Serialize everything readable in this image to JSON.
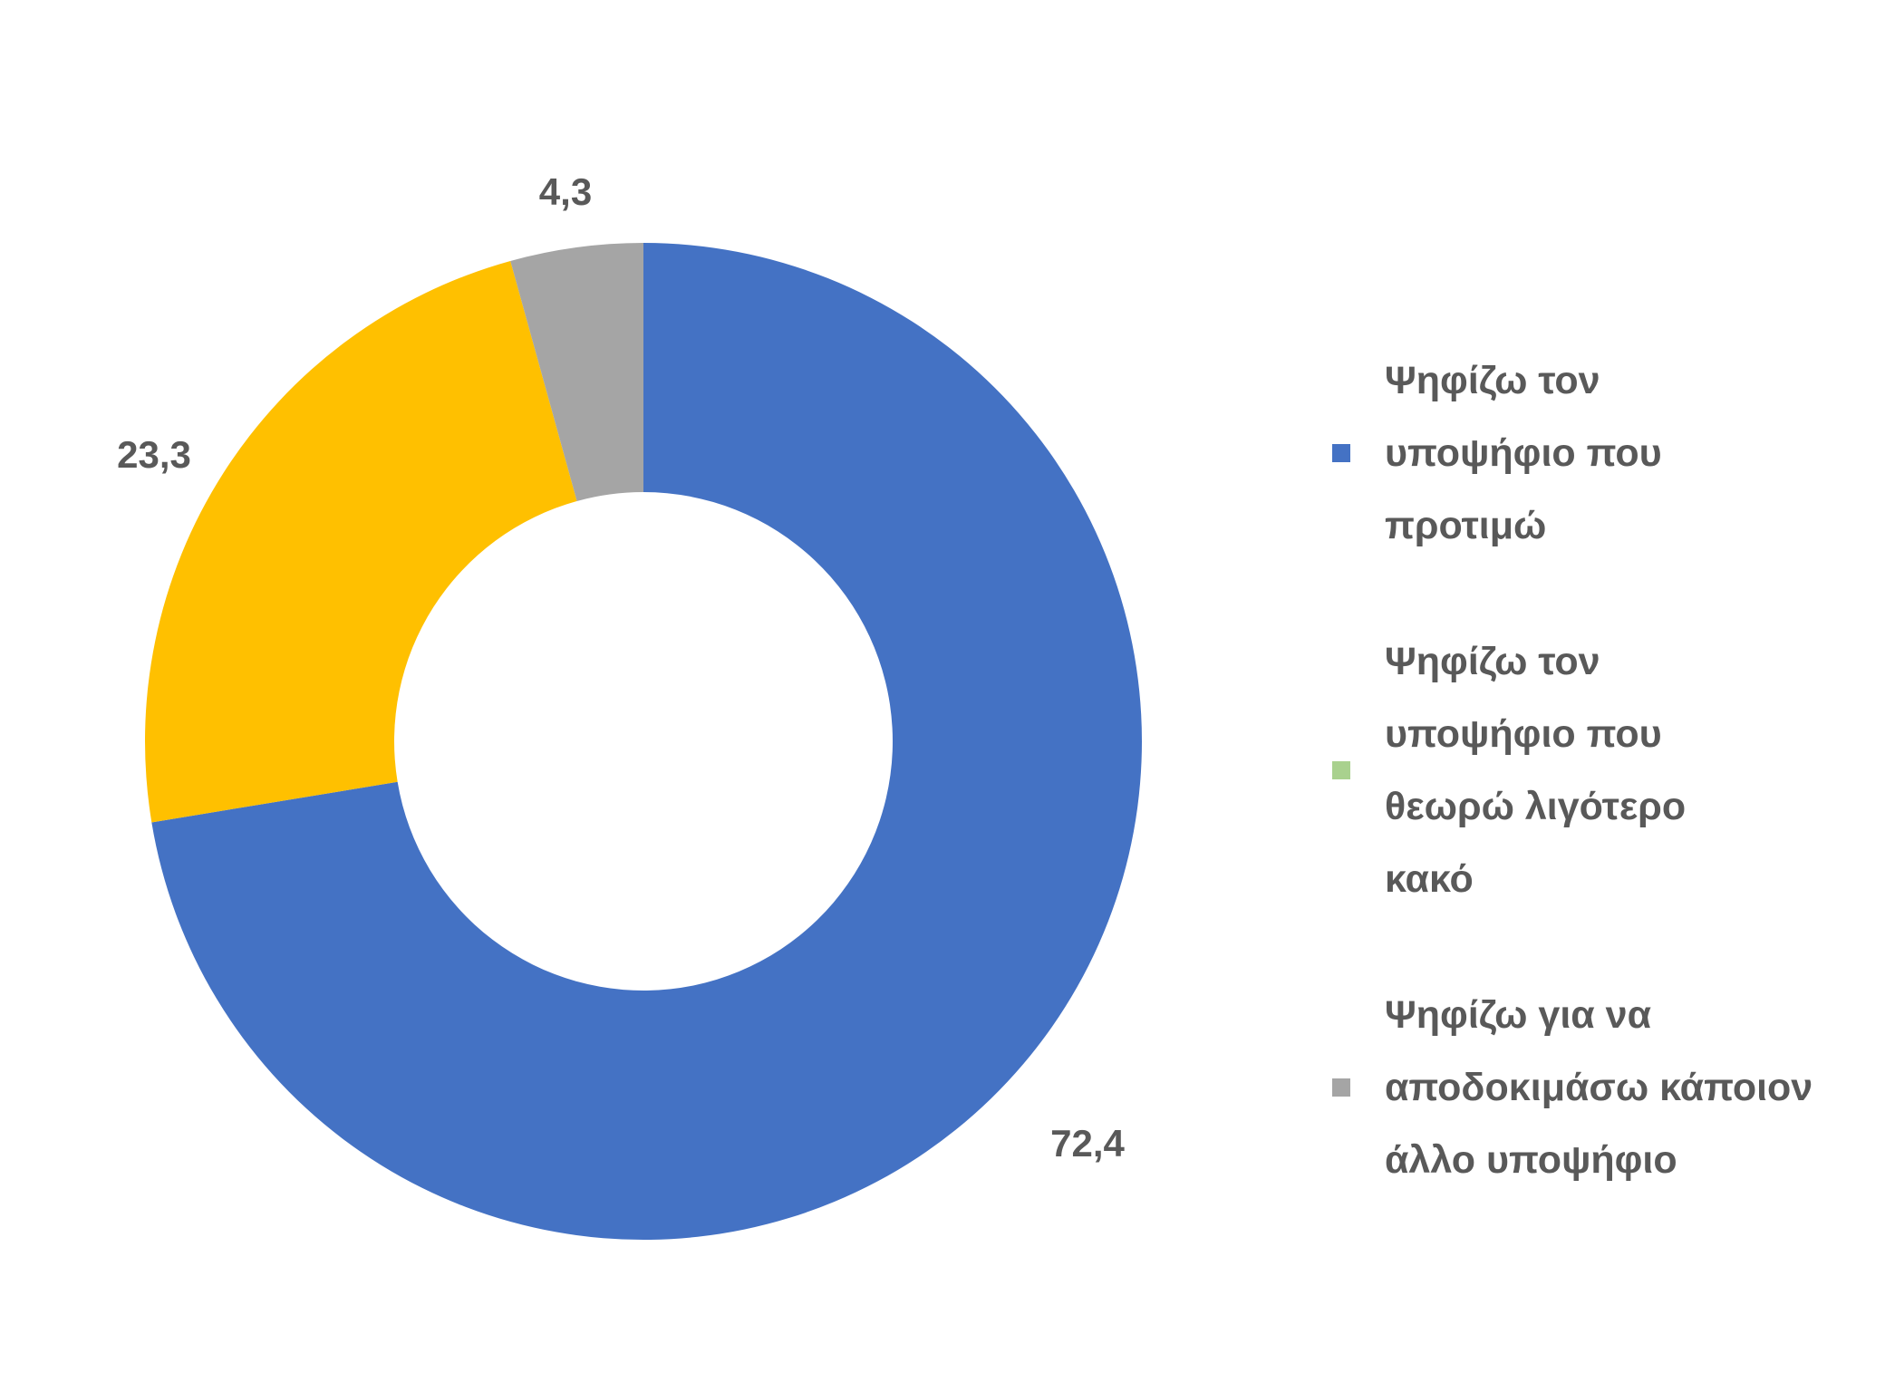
{
  "chart_data": {
    "type": "pie",
    "donut": true,
    "title": "",
    "categories": [
      "Ψηφίζω τον υποψήφιο που προτιμώ",
      "Ψηφίζω τον υποψήφιο που θεωρώ λιγότερο κακό",
      "Ψηφίζω για να αποδοκιμάσω κάποιον άλλο υποψήφιο"
    ],
    "values": [
      72.4,
      23.3,
      4.3
    ],
    "value_labels": [
      "72,4",
      "23,3",
      "4,3"
    ],
    "colors": [
      "#4472C4",
      "#FFC000",
      "#A5A5A5"
    ],
    "legend_colors": [
      "#4472C4",
      "#A9D18E",
      "#A5A5A5"
    ],
    "legend_position": "right"
  },
  "legend": {
    "items": [
      {
        "lines": [
          "Ψηφίζω τον",
          "υποψήφιο που",
          "προτιμώ"
        ],
        "color": "#4472C4"
      },
      {
        "lines": [
          "Ψηφίζω τον",
          "υποψήφιο που",
          "θεωρώ λιγότερο",
          "κακό"
        ],
        "color": "#A9D18E"
      },
      {
        "lines": [
          "Ψηφίζω για να",
          "αποδοκιμάσω κάποιον",
          "άλλο υποψήφιο"
        ],
        "color": "#A5A5A5"
      }
    ]
  }
}
